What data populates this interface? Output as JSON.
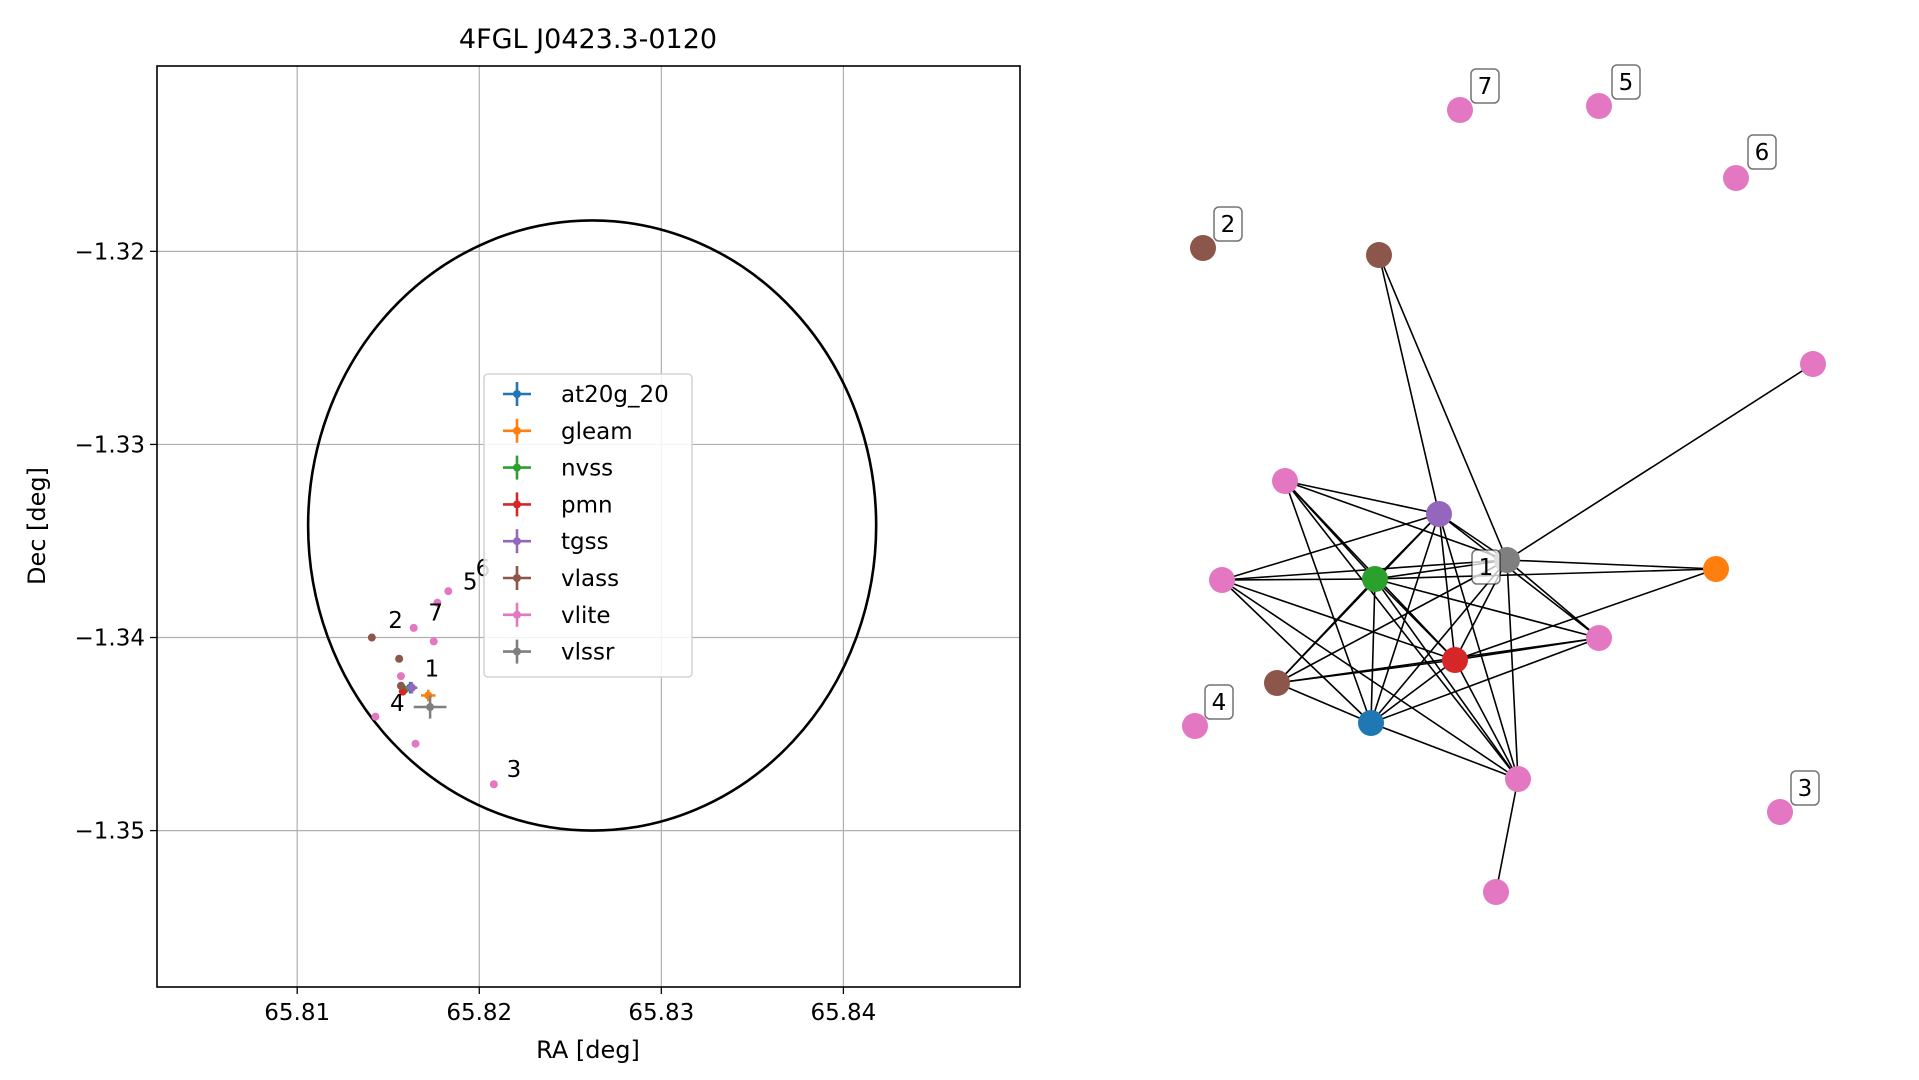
{
  "chart_data": [
    {
      "type": "scatter",
      "title": "4FGL J0423.3-0120",
      "xlabel": "RA [deg]",
      "ylabel": "Dec [deg]",
      "xlim": [
        65.8023,
        65.8497
      ],
      "ylim": [
        -1.3581,
        -1.3104
      ],
      "x_ticks": [
        65.81,
        65.82,
        65.83,
        65.84
      ],
      "x_tick_labels": [
        "65.81",
        "65.82",
        "65.83",
        "65.84"
      ],
      "y_ticks": [
        -1.32,
        -1.33,
        -1.34,
        -1.35
      ],
      "y_tick_labels": [
        "−1.32",
        "−1.33",
        "−1.34",
        "−1.35"
      ],
      "grid": true,
      "legend_placement": "center",
      "ellipse": {
        "ra": 65.8262,
        "dec": -1.3342,
        "a": 0.0156,
        "b": 0.0158,
        "color": "#000000"
      },
      "series": [
        {
          "name": "at20g_20",
          "color": "#1f77b4",
          "points": [
            {
              "ra": 65.8162,
              "dec": -1.3426,
              "ex": 0.0003,
              "ey": 0.0003
            }
          ]
        },
        {
          "name": "gleam",
          "color": "#ff7f0e",
          "points": [
            {
              "ra": 65.8172,
              "dec": -1.343,
              "ex": 0.0004,
              "ey": 0.0003
            }
          ]
        },
        {
          "name": "nvss",
          "color": "#2ca02c",
          "points": [
            {
              "ra": 65.8159,
              "dec": -1.3427,
              "ex": 0.0002,
              "ey": 0.0002
            }
          ]
        },
        {
          "name": "pmn",
          "color": "#d62728",
          "points": [
            {
              "ra": 65.8158,
              "dec": -1.3428,
              "ex": 0.0002,
              "ey": 0.0002
            }
          ]
        },
        {
          "name": "tgss",
          "color": "#9467bd",
          "points": [
            {
              "ra": 65.8163,
              "dec": -1.3426,
              "ex": 0.0003,
              "ey": 0.0003
            }
          ]
        },
        {
          "name": "vlass",
          "color": "#8c564b",
          "points": [
            {
              "ra": 65.8141,
              "dec": -1.34,
              "ex": 0,
              "ey": 0
            },
            {
              "ra": 65.8156,
              "dec": -1.3411,
              "ex": 0,
              "ey": 0
            },
            {
              "ra": 65.8157,
              "dec": -1.3425,
              "ex": 0,
              "ey": 0
            }
          ]
        },
        {
          "name": "vlite",
          "color": "#e377c2",
          "points": [
            {
              "ra": 65.8164,
              "dec": -1.3395,
              "ex": 0,
              "ey": 0
            },
            {
              "ra": 65.8175,
              "dec": -1.3402,
              "ex": 0,
              "ey": 0
            },
            {
              "ra": 65.8157,
              "dec": -1.342,
              "ex": 0,
              "ey": 0
            },
            {
              "ra": 65.8143,
              "dec": -1.3441,
              "ex": 0,
              "ey": 0
            },
            {
              "ra": 65.8165,
              "dec": -1.3455,
              "ex": 0,
              "ey": 0
            },
            {
              "ra": 65.8208,
              "dec": -1.3476,
              "ex": 0,
              "ey": 0
            },
            {
              "ra": 65.8177,
              "dec": -1.3382,
              "ex": 0,
              "ey": 0
            },
            {
              "ra": 65.8183,
              "dec": -1.3376,
              "ex": 0,
              "ey": 0
            }
          ]
        },
        {
          "name": "vlssr",
          "color": "#7f7f7f",
          "points": [
            {
              "ra": 65.8173,
              "dec": -1.3436,
              "ex": 0.0009,
              "ey": 0.0006
            }
          ]
        }
      ],
      "annotations": [
        {
          "text": "1",
          "ra": 65.817,
          "dec": -1.3416
        },
        {
          "text": "2",
          "ra": 65.815,
          "dec": -1.3391
        },
        {
          "text": "3",
          "ra": 65.8215,
          "dec": -1.3468
        },
        {
          "text": "4",
          "ra": 65.8151,
          "dec": -1.3434
        },
        {
          "text": "5",
          "ra": 65.8191,
          "dec": -1.3371
        },
        {
          "text": "6",
          "ra": 65.8198,
          "dec": -1.3364
        },
        {
          "text": "7",
          "ra": 65.8172,
          "dec": -1.3387
        }
      ]
    },
    {
      "type": "network",
      "nodes": [
        {
          "id": "n0",
          "series": "vlite",
          "color": "#e377c2",
          "label": "7"
        },
        {
          "id": "n1",
          "series": "vlite",
          "color": "#e377c2",
          "label": "5"
        },
        {
          "id": "n2",
          "series": "vlite",
          "color": "#e377c2",
          "label": "6"
        },
        {
          "id": "n3",
          "series": "vlass",
          "color": "#8c564b",
          "label": "2"
        },
        {
          "id": "n4",
          "series": "vlass",
          "color": "#8c564b",
          "label": ""
        },
        {
          "id": "n5",
          "series": "vlite",
          "color": "#e377c2",
          "label": ""
        },
        {
          "id": "n6",
          "series": "vlite",
          "color": "#e377c2",
          "label": ""
        },
        {
          "id": "n7",
          "series": "tgss",
          "color": "#9467bd",
          "label": ""
        },
        {
          "id": "n8",
          "series": "vlssr",
          "color": "#7f7f7f",
          "label": "1"
        },
        {
          "id": "n9",
          "series": "gleam",
          "color": "#ff7f0e",
          "label": ""
        },
        {
          "id": "n10",
          "series": "vlite",
          "color": "#e377c2",
          "label": ""
        },
        {
          "id": "n11",
          "series": "nvss",
          "color": "#2ca02c",
          "label": ""
        },
        {
          "id": "n12",
          "series": "vlite",
          "color": "#e377c2",
          "label": ""
        },
        {
          "id": "n13",
          "series": "pmn",
          "color": "#d62728",
          "label": ""
        },
        {
          "id": "n14",
          "series": "vlass",
          "color": "#8c564b",
          "label": ""
        },
        {
          "id": "n15",
          "series": "vlite",
          "color": "#e377c2",
          "label": "4"
        },
        {
          "id": "n16",
          "series": "at20g_20",
          "color": "#1f77b4",
          "label": ""
        },
        {
          "id": "n17",
          "series": "vlite",
          "color": "#e377c2",
          "label": ""
        },
        {
          "id": "n18",
          "series": "vlite",
          "color": "#e377c2",
          "label": "3"
        },
        {
          "id": "n19",
          "series": "vlite",
          "color": "#e377c2",
          "label": ""
        }
      ],
      "edges": [
        [
          "n4",
          "n7"
        ],
        [
          "n4",
          "n8"
        ],
        [
          "n5",
          "n8"
        ],
        [
          "n6",
          "n7"
        ],
        [
          "n6",
          "n8"
        ],
        [
          "n6",
          "n11"
        ],
        [
          "n6",
          "n13"
        ],
        [
          "n6",
          "n16"
        ],
        [
          "n6",
          "n17"
        ],
        [
          "n10",
          "n7"
        ],
        [
          "n10",
          "n8"
        ],
        [
          "n10",
          "n11"
        ],
        [
          "n10",
          "n13"
        ],
        [
          "n10",
          "n16"
        ],
        [
          "n10",
          "n17"
        ],
        [
          "n7",
          "n8"
        ],
        [
          "n7",
          "n11"
        ],
        [
          "n7",
          "n13"
        ],
        [
          "n7",
          "n16"
        ],
        [
          "n7",
          "n17"
        ],
        [
          "n7",
          "n12"
        ],
        [
          "n7",
          "n14"
        ],
        [
          "n8",
          "n9"
        ],
        [
          "n8",
          "n11"
        ],
        [
          "n8",
          "n12"
        ],
        [
          "n8",
          "n13"
        ],
        [
          "n8",
          "n14"
        ],
        [
          "n8",
          "n16"
        ],
        [
          "n8",
          "n17"
        ],
        [
          "n9",
          "n11"
        ],
        [
          "n9",
          "n13"
        ],
        [
          "n11",
          "n12"
        ],
        [
          "n11",
          "n13"
        ],
        [
          "n11",
          "n14"
        ],
        [
          "n11",
          "n16"
        ],
        [
          "n11",
          "n17"
        ],
        [
          "n12",
          "n13"
        ],
        [
          "n12",
          "n14"
        ],
        [
          "n12",
          "n16"
        ],
        [
          "n13",
          "n14"
        ],
        [
          "n13",
          "n16"
        ],
        [
          "n13",
          "n17"
        ],
        [
          "n14",
          "n16"
        ],
        [
          "n16",
          "n17"
        ],
        [
          "n17",
          "n19"
        ]
      ]
    }
  ]
}
